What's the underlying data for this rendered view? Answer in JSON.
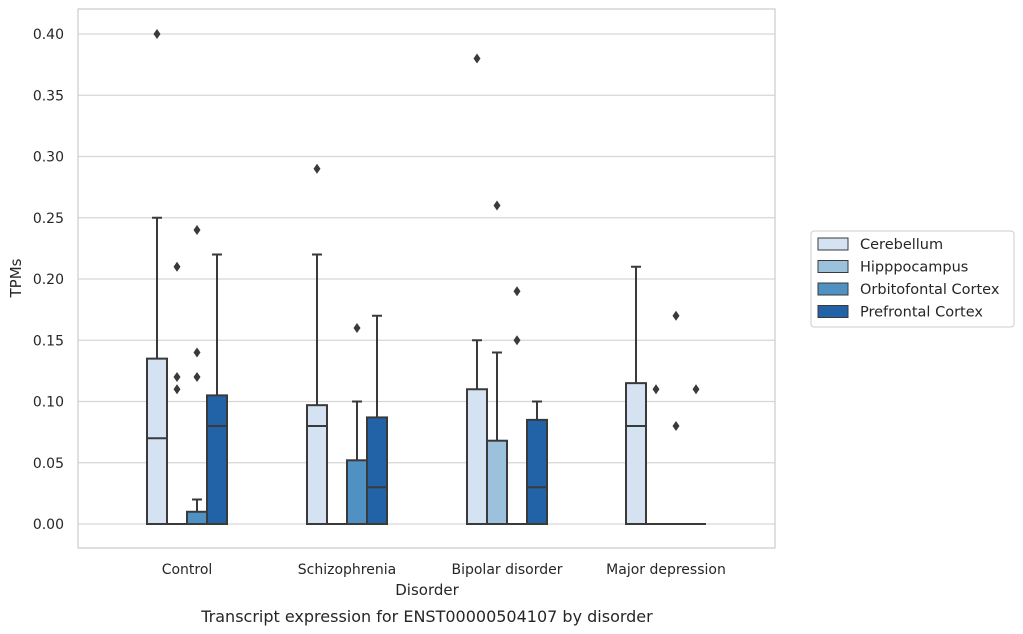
{
  "chart_data": {
    "type": "box",
    "title": "",
    "caption": "Transcript expression for ENST00000504107 by disorder",
    "xlabel": "Disorder",
    "ylabel": "TPMs",
    "ylim": [
      -0.02,
      0.42
    ],
    "yticks": [
      "0.00",
      "0.05",
      "0.10",
      "0.15",
      "0.20",
      "0.25",
      "0.30",
      "0.35",
      "0.40"
    ],
    "grid": "horizontal",
    "legend_position": "right",
    "categories": [
      "Control",
      "Schizophrenia",
      "Bipolar disorder",
      "Major depression"
    ],
    "series": [
      {
        "name": "Cerebellum",
        "color": "#d4e2f2",
        "boxes": [
          {
            "min": 0.0,
            "q1": 0.0,
            "median": 0.07,
            "q3": 0.135,
            "max": 0.25,
            "outliers": [
              0.4
            ]
          },
          {
            "min": 0.0,
            "q1": 0.0,
            "median": 0.08,
            "q3": 0.097,
            "max": 0.22,
            "outliers": [
              0.29
            ]
          },
          {
            "min": 0.0,
            "q1": 0.0,
            "median": 0.0,
            "q3": 0.11,
            "max": 0.15,
            "outliers": [
              0.38
            ]
          },
          {
            "min": 0.0,
            "q1": 0.0,
            "median": 0.08,
            "q3": 0.115,
            "max": 0.21,
            "outliers": []
          }
        ]
      },
      {
        "name": "Hipppocampus",
        "color": "#9bc1dc",
        "boxes": [
          {
            "min": 0.0,
            "q1": 0.0,
            "median": 0.0,
            "q3": 0.0,
            "max": 0.0,
            "outliers": [
              0.21,
              0.12,
              0.11
            ]
          },
          {
            "min": 0.0,
            "q1": 0.0,
            "median": 0.0,
            "q3": 0.0,
            "max": 0.0,
            "outliers": []
          },
          {
            "min": 0.0,
            "q1": 0.0,
            "median": 0.0,
            "q3": 0.068,
            "max": 0.14,
            "outliers": [
              0.26
            ]
          },
          {
            "min": 0.0,
            "q1": 0.0,
            "median": 0.0,
            "q3": 0.0,
            "max": 0.0,
            "outliers": [
              0.11
            ]
          }
        ]
      },
      {
        "name": "Orbitofontal Cortex",
        "color": "#4f91c3",
        "boxes": [
          {
            "min": 0.0,
            "q1": 0.0,
            "median": 0.0,
            "q3": 0.01,
            "max": 0.02,
            "outliers": [
              0.24,
              0.14,
              0.12
            ]
          },
          {
            "min": 0.0,
            "q1": 0.0,
            "median": 0.0,
            "q3": 0.052,
            "max": 0.1,
            "outliers": [
              0.16
            ]
          },
          {
            "min": 0.0,
            "q1": 0.0,
            "median": 0.0,
            "q3": 0.0,
            "max": 0.0,
            "outliers": [
              0.19,
              0.15
            ]
          },
          {
            "min": 0.0,
            "q1": 0.0,
            "median": 0.0,
            "q3": 0.0,
            "max": 0.0,
            "outliers": [
              0.17,
              0.08
            ]
          }
        ]
      },
      {
        "name": "Prefrontal Cortex",
        "color": "#2163a6",
        "boxes": [
          {
            "min": 0.0,
            "q1": 0.0,
            "median": 0.08,
            "q3": 0.105,
            "max": 0.22,
            "outliers": []
          },
          {
            "min": 0.0,
            "q1": 0.0,
            "median": 0.03,
            "q3": 0.087,
            "max": 0.17,
            "outliers": []
          },
          {
            "min": 0.0,
            "q1": 0.0,
            "median": 0.03,
            "q3": 0.085,
            "max": 0.1,
            "outliers": []
          },
          {
            "min": 0.0,
            "q1": 0.0,
            "median": 0.0,
            "q3": 0.0,
            "max": 0.0,
            "outliers": [
              0.11
            ]
          }
        ]
      }
    ]
  }
}
